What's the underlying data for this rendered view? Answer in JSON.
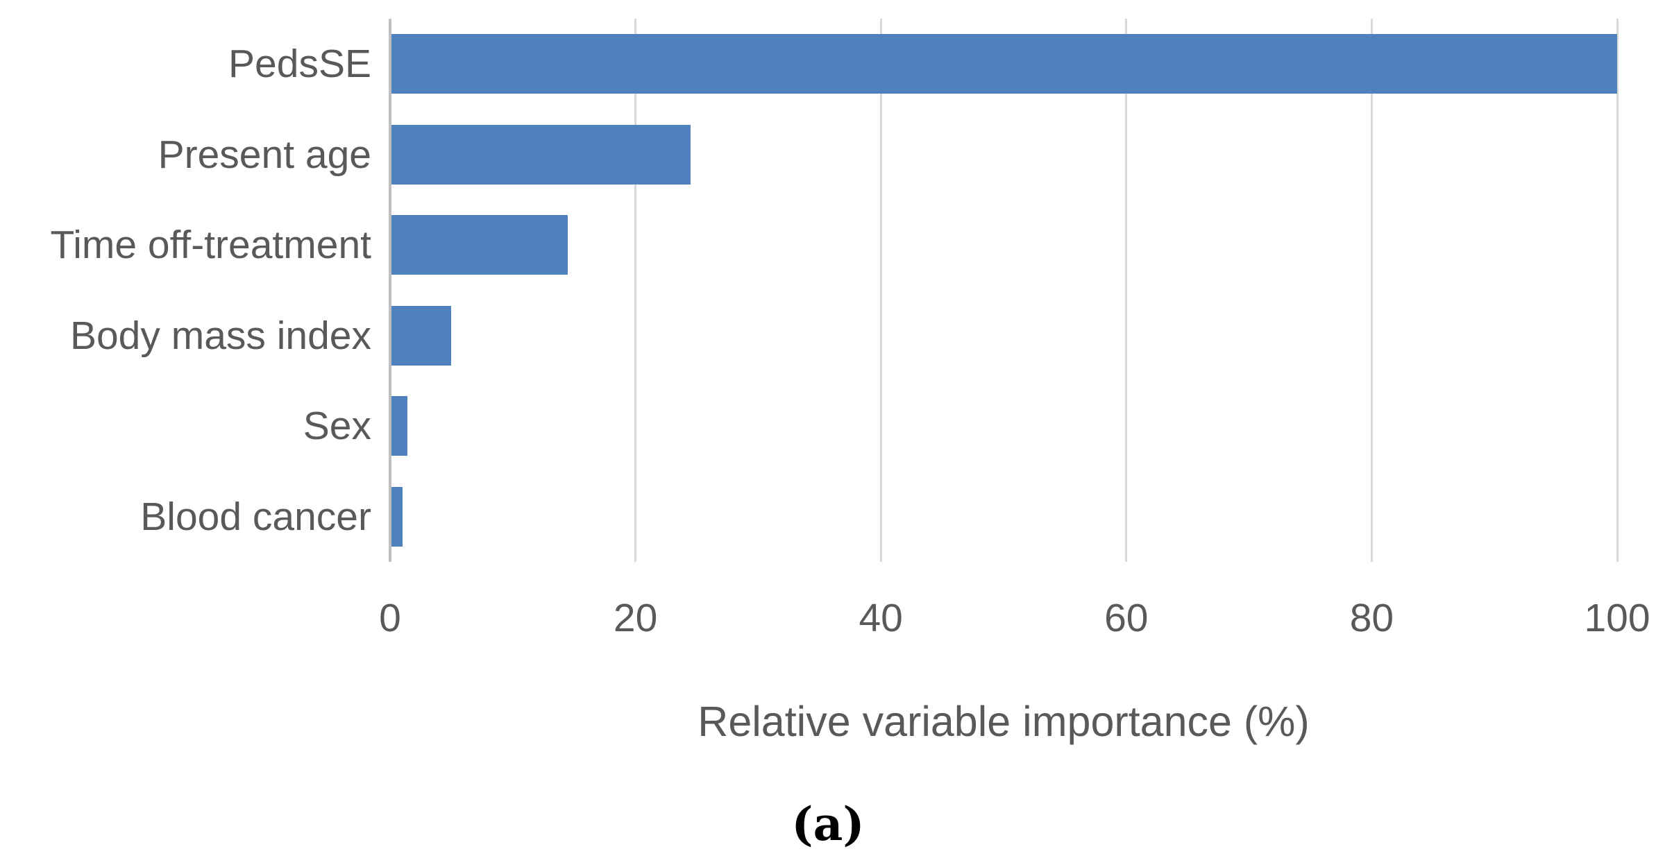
{
  "figure": {
    "panel_label": "(a)"
  },
  "chart_data": {
    "type": "bar",
    "orientation": "horizontal",
    "title": "",
    "xlabel": "Relative variable importance (%)",
    "ylabel": "",
    "categories": [
      "PedsSE",
      "Present age",
      "Time off-treatment",
      "Body mass index",
      "Sex",
      "Blood cancer"
    ],
    "values": [
      100,
      24.5,
      14.5,
      5,
      1.4,
      1
    ],
    "xlim": [
      0,
      100
    ],
    "xticks": [
      0,
      20,
      40,
      60,
      80,
      100
    ],
    "grid": true,
    "legend_position": "none",
    "colors": {
      "bar": "#4E81BD",
      "axis_line": "#BFBFBF",
      "gridline": "#D9D9D9",
      "label_text": "#595959",
      "panel_label_text": "#000000",
      "background": "#FFFFFF"
    }
  }
}
